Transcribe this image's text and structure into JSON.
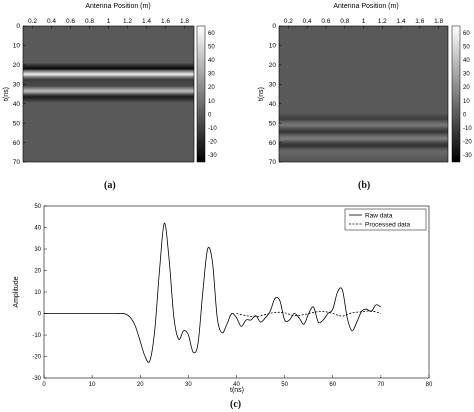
{
  "figure": {
    "captions": [
      "(a)",
      "(b)",
      "(c)"
    ]
  },
  "chart_data": [
    {
      "type": "heatmap",
      "panel": "a",
      "xlabel": "Antenna Position (m)",
      "ylabel": "t(ns)",
      "xlim": [
        0.1,
        1.9
      ],
      "ylim": [
        0,
        70
      ],
      "y_inverted": true,
      "xticks": [
        "0.2",
        "0.4",
        "0.6",
        "0.8",
        "1",
        "1.2",
        "1.4",
        "1.6",
        "1.8"
      ],
      "yticks": [
        "0",
        "10",
        "20",
        "30",
        "40",
        "50",
        "60",
        "70"
      ],
      "colorbar": {
        "range": [
          -35,
          65
        ],
        "ticks": [
          "60",
          "50",
          "40",
          "30",
          "20",
          "10",
          "0",
          "-10",
          "-20",
          "-30"
        ],
        "colormap": "gray"
      },
      "bands": [
        {
          "t": 22.0,
          "value": -34
        },
        {
          "t": 25.0,
          "value": 60
        },
        {
          "t": 28.0,
          "value": -12
        },
        {
          "t": 30.5,
          "value": -8
        },
        {
          "t": 34.0,
          "value": 46
        },
        {
          "t": 36.5,
          "value": -25
        }
      ]
    },
    {
      "type": "heatmap",
      "panel": "b",
      "xlabel": "Antenna Position (m)",
      "ylabel": "t(ns)",
      "xlim": [
        0.1,
        1.9
      ],
      "ylim": [
        0,
        70
      ],
      "y_inverted": true,
      "xticks": [
        "0.2",
        "0.4",
        "0.6",
        "0.8",
        "1",
        "1.2",
        "1.4",
        "1.6",
        "1.8"
      ],
      "yticks": [
        "0",
        "10",
        "20",
        "30",
        "40",
        "50",
        "60",
        "70"
      ],
      "colorbar": {
        "range": [
          -35,
          65
        ],
        "ticks": [
          "60",
          "50",
          "40",
          "30",
          "20",
          "10",
          "0",
          "-10",
          "-20",
          "-30"
        ],
        "colormap": "gray"
      },
      "bands": [
        {
          "t": 48.0,
          "value": -12
        },
        {
          "t": 51.0,
          "value": 12
        },
        {
          "t": 54.5,
          "value": -14
        },
        {
          "t": 58.0,
          "value": 14
        },
        {
          "t": 61.5,
          "value": -16
        },
        {
          "t": 65.0,
          "value": 6
        }
      ]
    },
    {
      "type": "line",
      "panel": "c",
      "xlabel": "t(ns)",
      "ylabel": "Amplitude",
      "xlim": [
        0,
        80
      ],
      "ylim": [
        -30,
        50
      ],
      "xticks": [
        "0",
        "10",
        "20",
        "30",
        "40",
        "50",
        "60",
        "70",
        "80"
      ],
      "yticks": [
        "50",
        "40",
        "30",
        "20",
        "10",
        "0",
        "-10",
        "-20",
        "-30"
      ],
      "legend_position": "top-right",
      "series": [
        {
          "name": "Raw data",
          "style": "solid",
          "x": [
            0,
            10,
            14,
            16,
            17,
            18,
            19,
            20,
            21,
            22,
            23,
            24,
            25,
            26,
            27,
            28,
            29,
            30,
            31,
            32,
            33,
            34,
            35,
            36,
            37,
            38,
            39,
            40,
            41,
            42,
            43,
            44,
            45,
            46,
            47,
            48,
            49,
            50,
            51,
            52,
            53,
            54,
            55,
            56,
            57,
            58,
            59,
            60,
            61,
            62,
            63,
            64,
            65,
            66,
            67,
            68,
            69,
            70
          ],
          "y": [
            0,
            0,
            0,
            0,
            -0.3,
            -2,
            -6,
            -13,
            -20,
            -22,
            -8,
            20,
            42,
            25,
            -2,
            -12,
            -8,
            -10,
            -18,
            -14,
            10,
            30,
            24,
            -2,
            -9,
            -5,
            0,
            -2,
            -6,
            -3,
            -3,
            -1,
            -4,
            -2,
            1,
            7,
            6,
            -3,
            -3,
            0,
            -2,
            -5,
            0,
            3,
            -4,
            -3,
            0,
            2,
            10,
            11,
            -2,
            -8,
            -4,
            1,
            2,
            1,
            4,
            3
          ]
        },
        {
          "name": "Processed data",
          "style": "dashed",
          "x": [
            40,
            42,
            44,
            46,
            48,
            50,
            52,
            54,
            56,
            58,
            60,
            62,
            64,
            66,
            68,
            70
          ],
          "y": [
            0,
            -1,
            -1.5,
            -0.5,
            0.5,
            0.3,
            -1,
            -0.5,
            0.5,
            1,
            0,
            -1.2,
            0.3,
            0.8,
            1.2,
            0
          ]
        }
      ]
    }
  ]
}
